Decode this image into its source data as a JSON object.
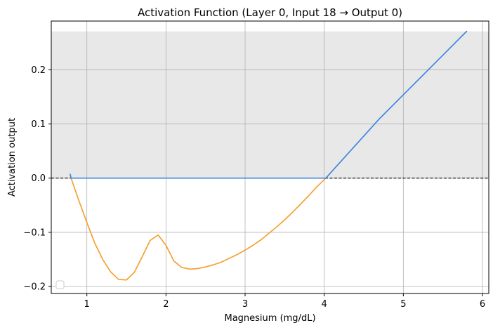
{
  "chart_data": {
    "type": "line",
    "title": "Activation Function (Layer 0, Input 18 → Output 0)",
    "xlabel": "Magnesium (mg/dL)",
    "ylabel": "Activation output",
    "xlim": [
      0.55,
      6.08
    ],
    "ylim": [
      -0.213,
      0.29
    ],
    "x_ticks": [
      1,
      2,
      3,
      4,
      5,
      6
    ],
    "y_ticks": [
      -0.2,
      -0.1,
      0.0,
      0.1,
      0.2
    ],
    "x_tick_labels": [
      "1",
      "2",
      "3",
      "4",
      "5",
      "6"
    ],
    "y_tick_labels": [
      "−0.2",
      "−0.1",
      "0.0",
      "0.1",
      "0.2"
    ],
    "grid": true,
    "legend": "bottom-left",
    "shaded_region": {
      "y_from": 0.0,
      "y_to": 0.271,
      "color": "#e8e8e8"
    },
    "reference_line": {
      "y": 0.0,
      "style": "dashed",
      "color": "#000000"
    },
    "series": [
      {
        "color": "#f5a033",
        "x": [
          0.8,
          0.9,
          1.0,
          1.1,
          1.2,
          1.3,
          1.4,
          1.5,
          1.6,
          1.7,
          1.8,
          1.9,
          2.0,
          2.1,
          2.2,
          2.3,
          2.4,
          2.5,
          2.6,
          2.7,
          2.8,
          2.9,
          3.0,
          3.1,
          3.2,
          3.3,
          3.4,
          3.5,
          3.6,
          3.7,
          3.8,
          3.9,
          4.02
        ],
        "y": [
          0.0,
          -0.042,
          -0.082,
          -0.12,
          -0.15,
          -0.173,
          -0.187,
          -0.188,
          -0.174,
          -0.145,
          -0.115,
          -0.105,
          -0.124,
          -0.153,
          -0.165,
          -0.168,
          -0.167,
          -0.164,
          -0.16,
          -0.155,
          -0.148,
          -0.141,
          -0.133,
          -0.124,
          -0.114,
          -0.102,
          -0.09,
          -0.077,
          -0.063,
          -0.048,
          -0.033,
          -0.017,
          0.0
        ]
      },
      {
        "color": "#3d87e0",
        "x": [
          0.79,
          0.8,
          4.02,
          4.7,
          5.8
        ],
        "y": [
          0.007,
          0.0,
          0.0,
          0.11,
          0.271
        ]
      }
    ]
  }
}
